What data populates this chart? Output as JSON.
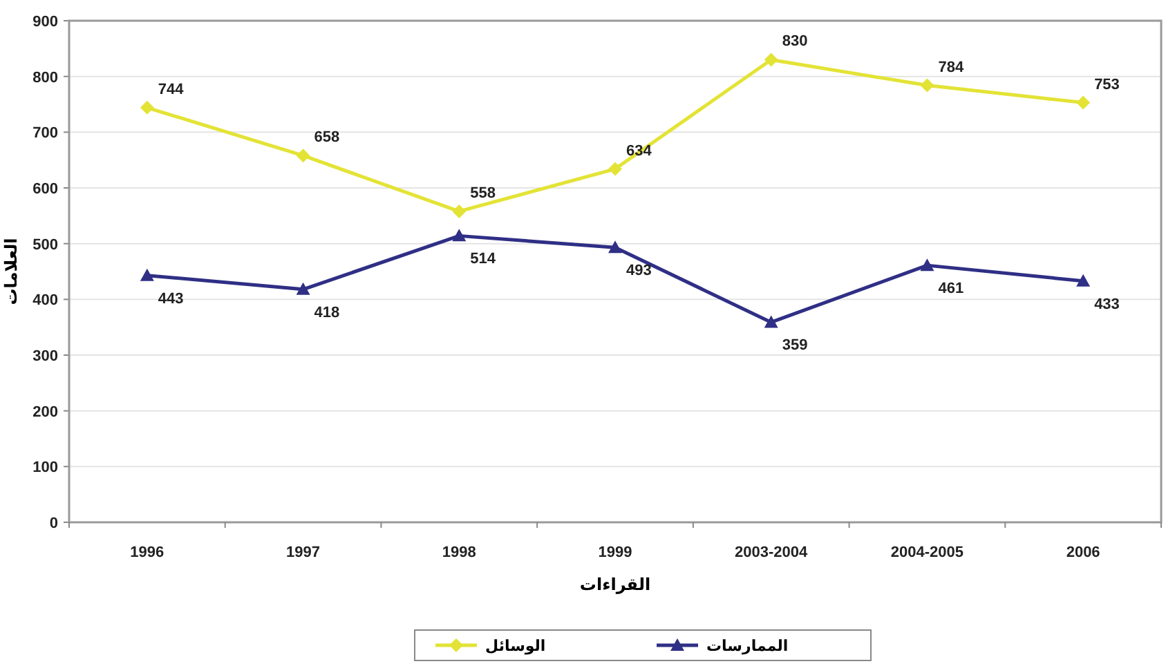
{
  "chart_data": {
    "type": "line",
    "xlabel": "القراءات",
    "ylabel": "العلامات",
    "categories": [
      "1996",
      "1997",
      "1998",
      "1999",
      "2003-2004",
      "2004-2005",
      "2006"
    ],
    "series": [
      {
        "name": "الوسائل",
        "color": "#e3e336",
        "marker": "diamond",
        "values": [
          744,
          658,
          558,
          634,
          830,
          784,
          753
        ]
      },
      {
        "name": "الممارسات",
        "color": "#2f2f86",
        "marker": "triangle",
        "values": [
          443,
          418,
          514,
          493,
          359,
          461,
          433
        ]
      }
    ],
    "ylim": [
      0,
      900
    ],
    "yticks": [
      0,
      100,
      200,
      300,
      400,
      500,
      600,
      700,
      800,
      900
    ],
    "grid": "y",
    "legend": "bottom",
    "data_labels": true
  }
}
